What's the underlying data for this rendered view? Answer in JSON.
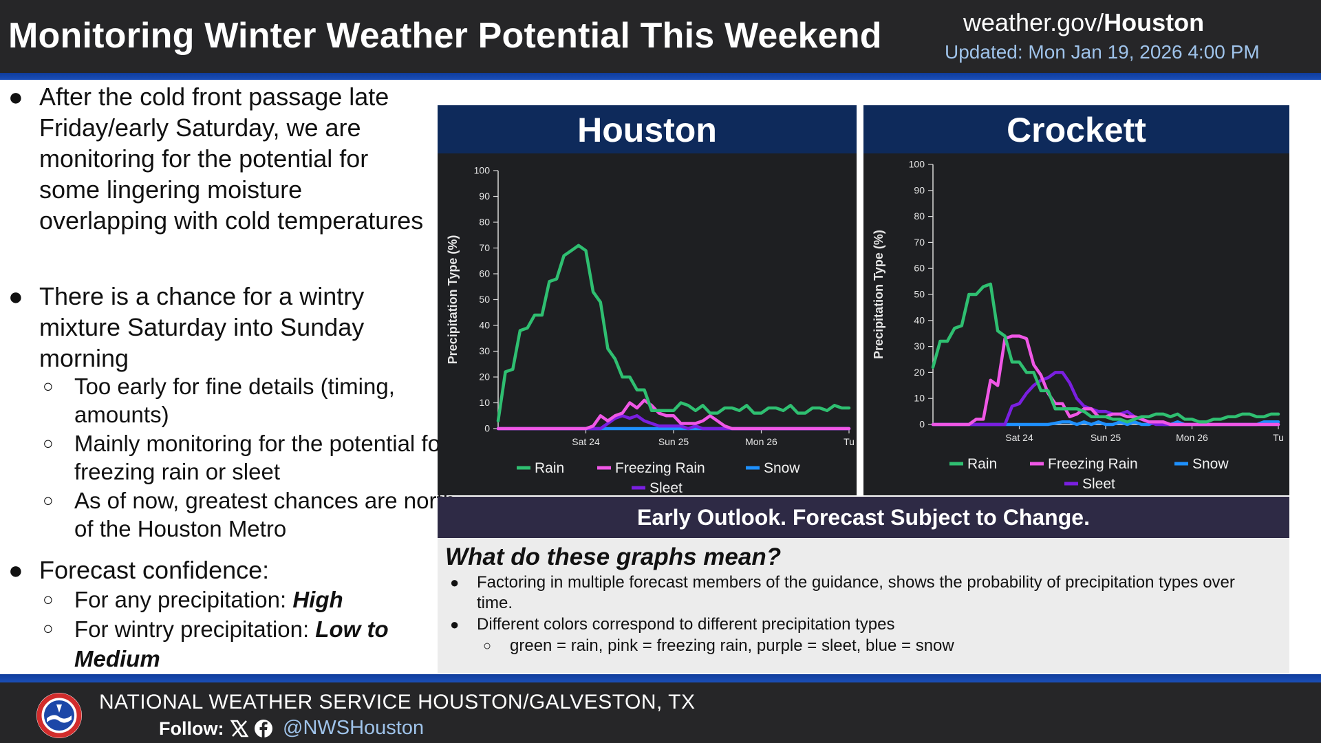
{
  "header": {
    "title": "Monitoring Winter Weather Potential This Weekend",
    "site_prefix": "weather.gov/",
    "site_office": "Houston",
    "updated": "Updated: Mon Jan 19, 2026 4:00 PM"
  },
  "bullets": {
    "b1": "After the cold front passage late Friday/early Saturday, we are monitoring for the potential for some lingering moisture overlapping with cold temperatures",
    "b2": "There is a chance for a wintry mixture Saturday into Sunday morning",
    "b2_sub1": "Too early for fine details (timing, amounts)",
    "b2_sub2": "Mainly monitoring for the potential for freezing rain or sleet",
    "b2_sub3": "As of now, greatest chances are north of the Houston Metro",
    "b3": "Forecast confidence:",
    "b3_sub1_label": "For any precipitation: ",
    "b3_sub1_value": "High",
    "b3_sub2_label": "For wintry precipitation: ",
    "b3_sub2_value": "Low to Medium"
  },
  "banner": "Early Outlook. Forecast Subject to Change.",
  "explain": {
    "title": "What do these graphs mean?",
    "item1": "Factoring in multiple forecast members of the guidance, shows the probability of precipitation types over time.",
    "item2": "Different colors correspond to different precipitation types",
    "item2_sub": "green = rain, pink = freezing rain, purple = sleet, blue = snow"
  },
  "footer": {
    "office": "NATIONAL WEATHER SERVICE HOUSTON/GALVESTON, TX",
    "follow": "Follow:",
    "handle": "@NWSHouston"
  },
  "colors": {
    "rain": "#2fbf71",
    "freezing_rain": "#f057e6",
    "snow": "#1e90ff",
    "sleet": "#7a1fe0"
  },
  "chart_data": [
    {
      "type": "line",
      "title": "Houston",
      "ylabel": "Precipitation Type (%)",
      "ylim": [
        0,
        100
      ],
      "yticks": [
        0,
        10,
        20,
        30,
        40,
        50,
        60,
        70,
        80,
        90,
        100
      ],
      "xlim": [
        0,
        96
      ],
      "xticks": [
        {
          "x": 24,
          "label": "Sat 24"
        },
        {
          "x": 48,
          "label": "Sun 25"
        },
        {
          "x": 72,
          "label": "Mon 26"
        },
        {
          "x": 96,
          "label": "Tu"
        }
      ],
      "series": [
        {
          "name": "Rain",
          "color": "#2fbf71",
          "x": [
            0,
            2,
            4,
            6,
            8,
            10,
            12,
            14,
            16,
            18,
            20,
            22,
            24,
            26,
            28,
            30,
            32,
            34,
            36,
            38,
            40,
            42,
            44,
            46,
            48,
            50,
            52,
            54,
            56,
            58,
            60,
            62,
            64,
            66,
            68,
            70,
            72,
            74,
            76,
            78,
            80,
            82,
            84,
            86,
            88,
            90,
            92,
            94,
            96
          ],
          "y": [
            3,
            22,
            23,
            38,
            39,
            44,
            44,
            57,
            58,
            67,
            69,
            71,
            69,
            53,
            49,
            31,
            27,
            20,
            20,
            15,
            15,
            7,
            7,
            7,
            7,
            10,
            9,
            7,
            9,
            6,
            6,
            8,
            8,
            7,
            9,
            6,
            6,
            8,
            8,
            7,
            9,
            6,
            6,
            8,
            8,
            7,
            9,
            8,
            8
          ]
        },
        {
          "name": "Freezing Rain",
          "color": "#f057e6",
          "x": [
            0,
            24,
            26,
            28,
            30,
            32,
            34,
            36,
            38,
            40,
            42,
            44,
            46,
            48,
            50,
            52,
            54,
            56,
            58,
            60,
            62,
            64,
            66,
            68,
            70,
            72,
            74,
            76,
            78,
            80,
            82,
            84,
            86,
            88,
            90,
            92,
            94,
            96
          ],
          "y": [
            0,
            0,
            1,
            5,
            3,
            5,
            6,
            10,
            8,
            11,
            9,
            6,
            5,
            5,
            2,
            2,
            2,
            3,
            5,
            3,
            1,
            0,
            0,
            0,
            0,
            0,
            0,
            0,
            0,
            0,
            0,
            0,
            0,
            0,
            0,
            0,
            0,
            0
          ]
        },
        {
          "name": "Snow",
          "color": "#1e90ff",
          "x": [
            0,
            30,
            40,
            50,
            60,
            70,
            80,
            90,
            96
          ],
          "y": [
            0,
            0,
            0,
            0,
            0,
            0,
            0,
            0,
            0
          ]
        },
        {
          "name": "Sleet",
          "color": "#7a1fe0",
          "x": [
            0,
            26,
            28,
            30,
            32,
            34,
            36,
            38,
            40,
            42,
            44,
            46,
            48,
            50,
            52,
            54,
            56,
            58,
            60,
            96
          ],
          "y": [
            0,
            0,
            0,
            2,
            4,
            5,
            4,
            5,
            3,
            2,
            1,
            1,
            1,
            1,
            0,
            1,
            0,
            0,
            0,
            0
          ]
        }
      ]
    },
    {
      "type": "line",
      "title": "Crockett",
      "ylabel": "Precipitation Type (%)",
      "ylim": [
        0,
        100
      ],
      "yticks": [
        0,
        10,
        20,
        30,
        40,
        50,
        60,
        70,
        80,
        90,
        100
      ],
      "xlim": [
        0,
        96
      ],
      "xticks": [
        {
          "x": 24,
          "label": "Sat 24"
        },
        {
          "x": 48,
          "label": "Sun 25"
        },
        {
          "x": 72,
          "label": "Mon 26"
        },
        {
          "x": 96,
          "label": "Tu"
        }
      ],
      "series": [
        {
          "name": "Rain",
          "color": "#2fbf71",
          "x": [
            0,
            2,
            4,
            6,
            8,
            10,
            12,
            14,
            16,
            18,
            20,
            22,
            24,
            26,
            28,
            30,
            32,
            34,
            36,
            38,
            40,
            42,
            44,
            46,
            48,
            50,
            52,
            54,
            56,
            58,
            60,
            62,
            64,
            66,
            68,
            70,
            72,
            74,
            76,
            78,
            80,
            82,
            84,
            86,
            88,
            90,
            92,
            94,
            96
          ],
          "y": [
            22,
            32,
            32,
            37,
            38,
            50,
            50,
            53,
            54,
            36,
            34,
            24,
            24,
            20,
            20,
            13,
            13,
            6,
            6,
            6,
            6,
            5,
            3,
            3,
            3,
            2,
            2,
            1,
            2,
            3,
            3,
            4,
            4,
            3,
            4,
            2,
            2,
            1,
            1,
            2,
            2,
            3,
            3,
            4,
            4,
            3,
            3,
            4,
            4
          ]
        },
        {
          "name": "Freezing Rain",
          "color": "#f057e6",
          "x": [
            0,
            2,
            4,
            6,
            8,
            10,
            12,
            14,
            16,
            18,
            20,
            22,
            24,
            26,
            28,
            30,
            32,
            34,
            36,
            38,
            40,
            42,
            44,
            46,
            48,
            50,
            52,
            54,
            56,
            58,
            60,
            62,
            64,
            66,
            68,
            70,
            72,
            74,
            76,
            78,
            80,
            82,
            84,
            86,
            88,
            90,
            92,
            94,
            96
          ],
          "y": [
            0,
            0,
            0,
            0,
            0,
            0,
            2,
            2,
            17,
            15,
            33,
            34,
            34,
            33,
            23,
            19,
            12,
            8,
            8,
            3,
            4,
            6,
            6,
            3,
            3,
            4,
            4,
            3,
            3,
            2,
            1,
            1,
            1,
            0,
            0,
            0,
            0,
            0,
            0,
            0,
            0,
            0,
            0,
            0,
            0,
            0,
            0,
            0,
            0
          ]
        },
        {
          "name": "Snow",
          "color": "#1e90ff",
          "x": [
            0,
            32,
            36,
            38,
            40,
            42,
            44,
            46,
            48,
            50,
            52,
            54,
            56,
            58,
            60,
            62,
            64,
            66,
            68,
            70,
            72,
            74,
            76,
            78,
            80,
            82,
            84,
            86,
            88,
            90,
            92,
            94,
            96
          ],
          "y": [
            0,
            0,
            1,
            1,
            0,
            1,
            0,
            1,
            0,
            0,
            1,
            0,
            1,
            0,
            0,
            1,
            0,
            0,
            1,
            0,
            0,
            0,
            0,
            0,
            0,
            0,
            0,
            0,
            0,
            0,
            1,
            1,
            1
          ]
        },
        {
          "name": "Sleet",
          "color": "#7a1fe0",
          "x": [
            0,
            20,
            22,
            24,
            26,
            28,
            30,
            32,
            34,
            36,
            38,
            40,
            42,
            44,
            46,
            48,
            50,
            52,
            54,
            56,
            58,
            60,
            62,
            96
          ],
          "y": [
            0,
            0,
            7,
            8,
            12,
            15,
            17,
            18,
            20,
            20,
            16,
            10,
            7,
            6,
            5,
            5,
            4,
            4,
            5,
            3,
            2,
            1,
            0,
            0
          ]
        }
      ]
    }
  ]
}
